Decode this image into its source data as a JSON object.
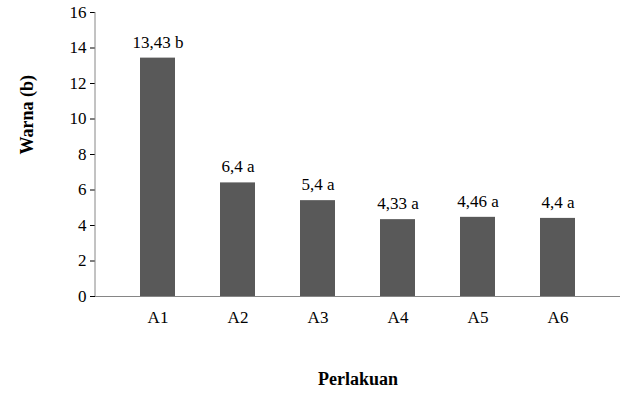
{
  "chart_data": {
    "type": "bar",
    "categories": [
      "A1",
      "A2",
      "A3",
      "A4",
      "A5",
      "A6"
    ],
    "values": [
      13.43,
      6.4,
      5.4,
      4.33,
      4.46,
      4.4
    ],
    "value_labels": [
      "13,43 b",
      "6,4 a",
      "5,4 a",
      "4,33 a",
      "4,46 a",
      "4,4 a"
    ],
    "data_labels": true,
    "color": "#595959",
    "xlabel": "Perlakuan",
    "ylabel": "Warna (b)",
    "ylim": [
      0,
      16
    ],
    "yticks": [
      0,
      2,
      4,
      6,
      8,
      10,
      12,
      14,
      16
    ],
    "grid": false
  }
}
